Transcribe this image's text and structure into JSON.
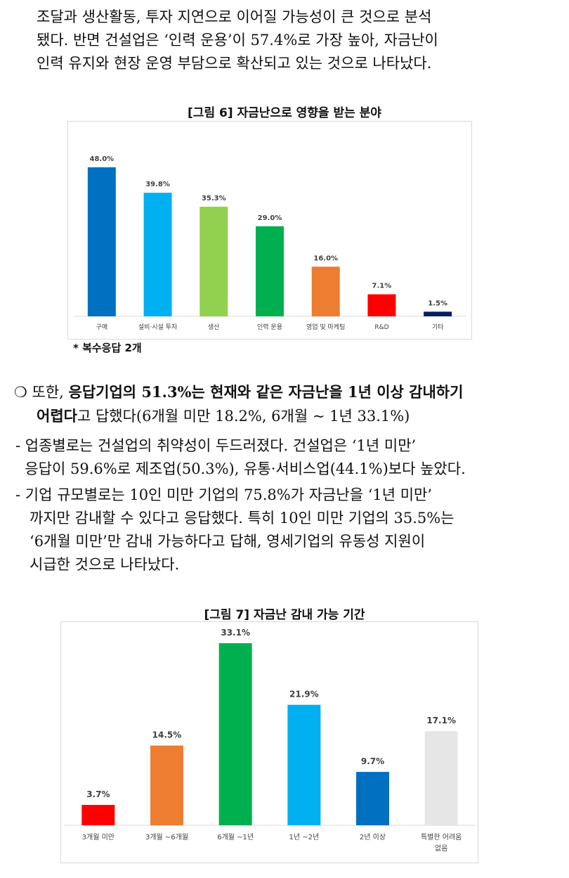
{
  "intro": {
    "lines": [
      "조달과 생산활동, 투자 지연으로 이어질 가능성이 큰 것으로 분석",
      "됐다. 반면 건설업은 ‘인력 운용’이 57.4%로 가장 높아, 자금난이",
      "인력 유지와 현장 운영 부담으로 확산되고 있는 것으로 나타났다."
    ]
  },
  "figure6": {
    "caption": "[그림 6] 자금난으로 영향을 받는 분야",
    "note": "* 복수응답 2개"
  },
  "bullet": {
    "marker": "❍",
    "pre": " 또한, ",
    "bold": "응답기업의 51.3%는 현재와 같은 자금난을 1년 이상 감내하기",
    "line2_bold": "어렵다",
    "line2_rest": "고 답했다(6개월 미만 18.2%, 6개월 ~ 1년 33.1%)"
  },
  "subs": [
    {
      "lines": [
        "- 업종별로는 건설업의 취약성이 두드러졌다. 건설업은 ‘1년 미만’",
        "  응답이 59.6%로 제조업(50.3%), 유통·서비스업(44.1%)보다 높았다."
      ]
    },
    {
      "lines": [
        "- 기업 규모별로는 10인 미만 기업의 75.8%가 자금난을 ‘1년 미만’",
        "   까지만 감내할 수 있다고 응답했다. 특히 10인 미만 기업의 35.5%는",
        "   ‘6개월 미만’만 감내 가능하다고 답해, 영세기업의 유동성 지원이",
        "   시급한 것으로 나타났다."
      ]
    }
  ],
  "figure7": {
    "caption": "[그림 7] 자금난 감내 가능 기간"
  },
  "chart_data": [
    {
      "type": "bar",
      "categories": [
        "구매",
        "설비·시설 투자",
        "생산",
        "인력 운용",
        "영업 및 마케팅",
        "R&D",
        "기타"
      ],
      "values": [
        48.0,
        39.8,
        35.3,
        29.0,
        16.0,
        7.1,
        1.5
      ],
      "data_labels": [
        "48.0%",
        "39.8%",
        "35.3%",
        "29.0%",
        "16.0%",
        "7.1%",
        "1.5%"
      ],
      "colors": [
        "#0070c0",
        "#00b0f0",
        "#92d050",
        "#00b050",
        "#ed7d31",
        "#ff0000",
        "#002060"
      ],
      "ylim": [
        0,
        48
      ],
      "grid": false,
      "legend": "none"
    },
    {
      "type": "bar",
      "categories": [
        "3개월 미만",
        "3개월 ~6개월",
        "6개월 ~1년",
        "1년 ~2년",
        "2년 이상",
        "특별한 어려움 없음"
      ],
      "values": [
        3.7,
        14.5,
        33.1,
        21.9,
        9.7,
        17.1
      ],
      "data_labels": [
        "3.7%",
        "14.5%",
        "33.1%",
        "21.9%",
        "9.7%",
        "17.1%"
      ],
      "colors": [
        "#ff0000",
        "#ed7d31",
        "#00b050",
        "#00b0f0",
        "#0070c0",
        "#e7e6e6"
      ],
      "ylim": [
        0,
        33.1
      ],
      "grid": false,
      "legend": "none"
    }
  ]
}
